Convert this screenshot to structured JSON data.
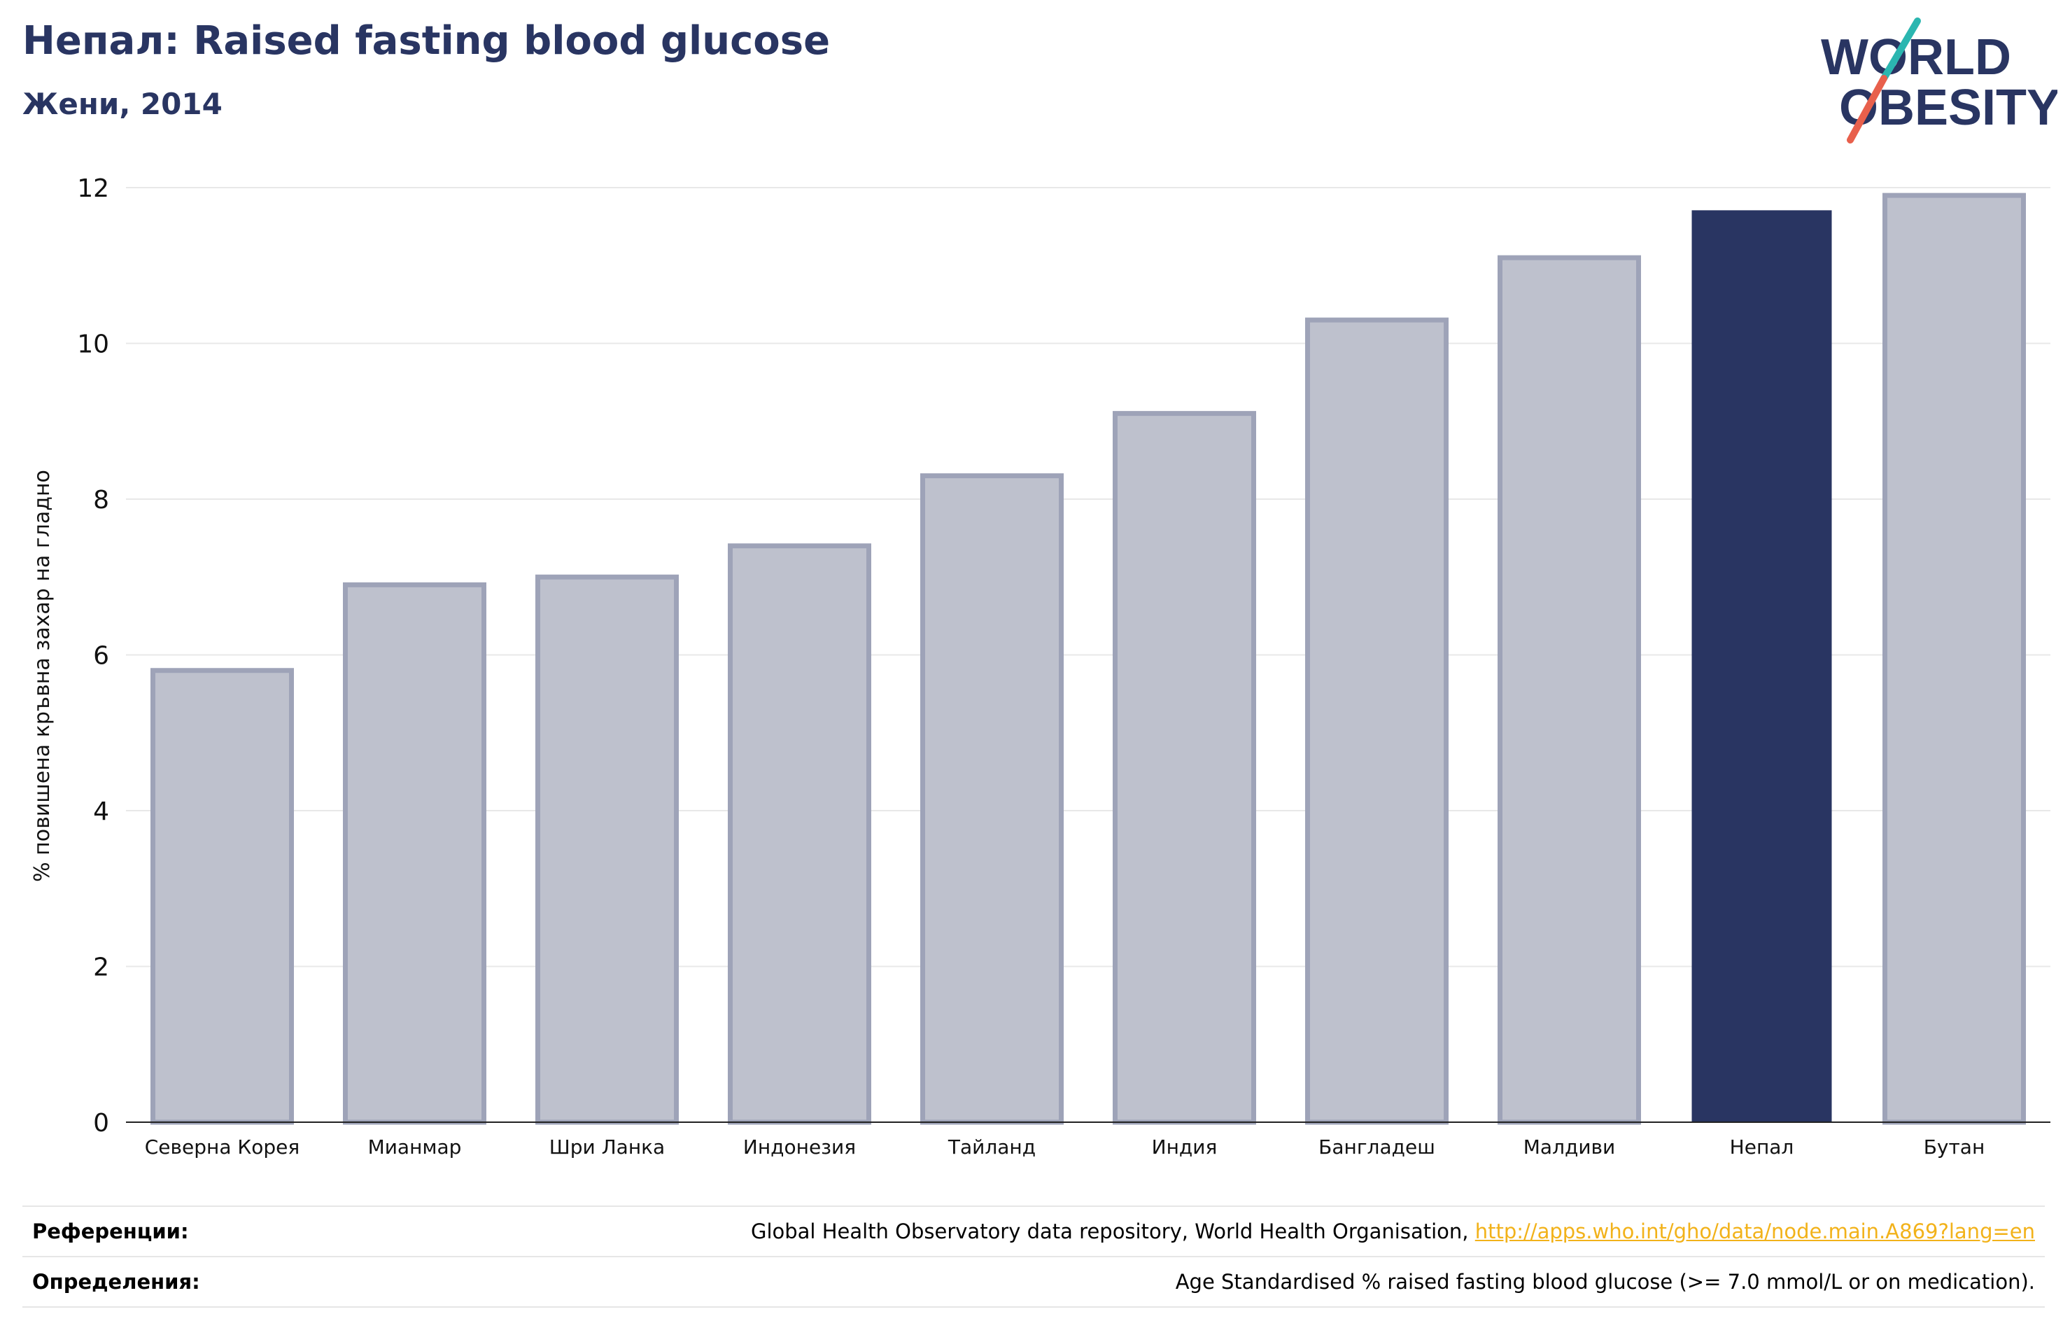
{
  "header": {
    "title": "Непал: Raised fasting blood glucose",
    "subtitle": "Жени, 2014"
  },
  "logo": {
    "line1": "WORLD",
    "line2": "OBESITY",
    "colors": {
      "text": "#293562",
      "slash_top": "#2bb6b0",
      "slash_bottom": "#e8604c"
    }
  },
  "colors": {
    "highlight_bar": "#293562",
    "other_bar_fill": "#bec1cd",
    "other_bar_stroke": "#9ea3b8",
    "grid": "#e8e8e8",
    "link": "#f2b21a"
  },
  "chart_data": {
    "type": "bar",
    "ylabel": "% повишена кръвна захар на гладно",
    "ylim": [
      0,
      12
    ],
    "yticks": [
      0,
      2,
      4,
      6,
      8,
      10,
      12
    ],
    "grid": true,
    "categories": [
      "Северна Корея",
      "Мианмар",
      "Шри Ланка",
      "Индонезия",
      "Тайланд",
      "Индия",
      "Бангладеш",
      "Малдиви",
      "Непал",
      "Бутан"
    ],
    "values": [
      5.8,
      6.9,
      7.0,
      7.4,
      8.3,
      9.1,
      10.3,
      11.1,
      11.7,
      11.9
    ],
    "highlight": "Непал"
  },
  "info": {
    "references_label": "Референции:",
    "references_text": "Global Health Observatory data repository, World Health Organisation, ",
    "references_link": "http://apps.who.int/gho/data/node.main.A869?lang=en",
    "definitions_label": "Определения:",
    "definitions_text": "Age Standardised % raised fasting blood glucose (>= 7.0 mmol/L or on medication)."
  }
}
